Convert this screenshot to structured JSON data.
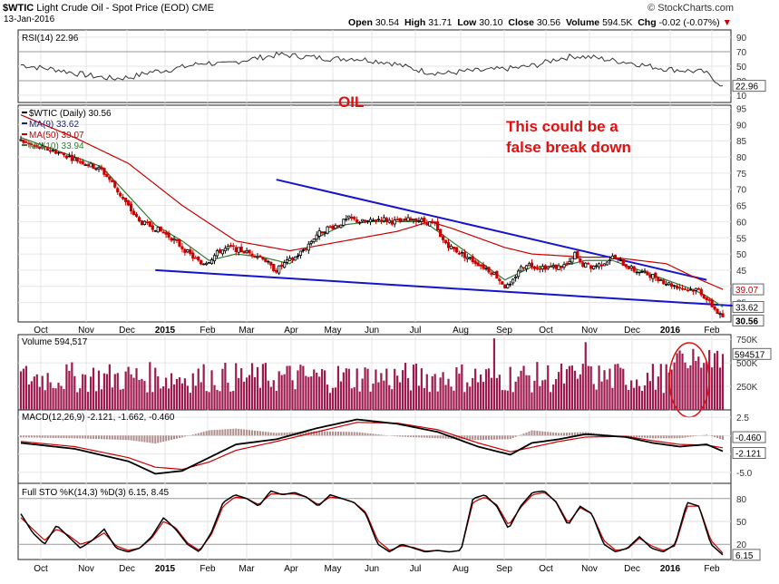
{
  "header": {
    "symbol": "$WTIC",
    "name": "Light Crude Oil - Spot Price (EOD)",
    "exchange": "CME",
    "watermark": "© StockCharts.com",
    "date": "13-Jan-2016",
    "open_label": "Open",
    "open": "30.54",
    "high_label": "High",
    "high": "31.71",
    "low_label": "Low",
    "low": "30.10",
    "close_label": "Close",
    "close": "30.56",
    "volume_label": "Volume",
    "volume": "594.5K",
    "chg_label": "Chg",
    "chg": "-0.02 (-0.07%)"
  },
  "annotations": {
    "oil": "OIL",
    "false_break_line1": "This could be a",
    "false_break_line2": "false break down"
  },
  "colors": {
    "up_bar": "#000000",
    "down_bar": "#cc0000",
    "volume": "#9e1a4e",
    "ma9": "#1a237e",
    "ma50": "#cc0000",
    "ma10": "#2e7d32",
    "trendline": "#1414cc",
    "annotation": "#e01010"
  },
  "chart_data": [
    {
      "type": "line",
      "panel": "RSI",
      "legend": "RSI(14) 22.96",
      "y_ticks": [
        10,
        30,
        50,
        70,
        90
      ],
      "ylim": [
        0,
        100
      ],
      "last_label": "22.96",
      "values": [
        52,
        48,
        45,
        40,
        36,
        33,
        35,
        42,
        45,
        50,
        55,
        52,
        58,
        62,
        66,
        64,
        62,
        60,
        61,
        58,
        55,
        48,
        42,
        40,
        43,
        44,
        46,
        48,
        52,
        60,
        64,
        62,
        58,
        55,
        50,
        46,
        44,
        42,
        22.96
      ]
    },
    {
      "type": "candlestick",
      "panel": "Price",
      "legend": [
        "$WTIC (Daily) 30.56",
        "MA(9) 33.62",
        "MA(50) 39.07",
        "MA(10) 33.94"
      ],
      "y_ticks": [
        35,
        40,
        45,
        50,
        55,
        60,
        65,
        70,
        75,
        80,
        85,
        90,
        95
      ],
      "ylim": [
        29,
        96
      ],
      "x_ticks": [
        "Oct",
        "Nov",
        "Dec",
        "2015",
        "Feb",
        "Mar",
        "Apr",
        "May",
        "Jun",
        "Jul",
        "Aug",
        "Sep",
        "Oct",
        "Nov",
        "Dec",
        "2016",
        "Feb"
      ],
      "price_labels": [
        "39.07",
        "33.62",
        "30.56"
      ],
      "close_path": [
        [
          0,
          85
        ],
        [
          6,
          83
        ],
        [
          12,
          82
        ],
        [
          18,
          80
        ],
        [
          24,
          78
        ],
        [
          30,
          76
        ],
        [
          34,
          72
        ],
        [
          38,
          67
        ],
        [
          44,
          60
        ],
        [
          50,
          58
        ],
        [
          56,
          55
        ],
        [
          60,
          52
        ],
        [
          64,
          49
        ],
        [
          67,
          47
        ],
        [
          70,
          48
        ],
        [
          74,
          51
        ],
        [
          78,
          52
        ],
        [
          82,
          51
        ],
        [
          86,
          50
        ],
        [
          90,
          49
        ],
        [
          93,
          46
        ],
        [
          95,
          45
        ],
        [
          98,
          47
        ],
        [
          102,
          49
        ],
        [
          106,
          52
        ],
        [
          110,
          56
        ],
        [
          114,
          58
        ],
        [
          118,
          59
        ],
        [
          122,
          61
        ],
        [
          126,
          60
        ],
        [
          130,
          60
        ],
        [
          134,
          61
        ],
        [
          138,
          60
        ],
        [
          142,
          60
        ],
        [
          146,
          61
        ],
        [
          150,
          60
        ],
        [
          154,
          59
        ],
        [
          156,
          55
        ],
        [
          160,
          52
        ],
        [
          164,
          50
        ],
        [
          168,
          48
        ],
        [
          172,
          46
        ],
        [
          176,
          44
        ],
        [
          180,
          40
        ],
        [
          182,
          40
        ],
        [
          185,
          45
        ],
        [
          188,
          47
        ],
        [
          192,
          46
        ],
        [
          196,
          46
        ],
        [
          200,
          46
        ],
        [
          204,
          47
        ],
        [
          206,
          50
        ],
        [
          208,
          47
        ],
        [
          212,
          46
        ],
        [
          216,
          47
        ],
        [
          220,
          49
        ],
        [
          224,
          47
        ],
        [
          228,
          45
        ],
        [
          232,
          44
        ],
        [
          236,
          43
        ],
        [
          240,
          41
        ],
        [
          244,
          40
        ],
        [
          248,
          39
        ],
        [
          252,
          39
        ],
        [
          254,
          37
        ],
        [
          256,
          35
        ],
        [
          258,
          33
        ],
        [
          260,
          31
        ],
        [
          261,
          30.56
        ]
      ],
      "ma50_path": [
        [
          0,
          93
        ],
        [
          20,
          86
        ],
        [
          40,
          78
        ],
        [
          60,
          65
        ],
        [
          80,
          54
        ],
        [
          100,
          51
        ],
        [
          120,
          54
        ],
        [
          140,
          57
        ],
        [
          152,
          60
        ],
        [
          160,
          58
        ],
        [
          180,
          52
        ],
        [
          190,
          50
        ],
        [
          210,
          49
        ],
        [
          220,
          49
        ],
        [
          240,
          47
        ],
        [
          250,
          43
        ],
        [
          261,
          39.07
        ]
      ],
      "ma9_path": [
        [
          0,
          86
        ],
        [
          10,
          83
        ],
        [
          20,
          80
        ],
        [
          30,
          77
        ],
        [
          40,
          68
        ],
        [
          50,
          59
        ],
        [
          60,
          54
        ],
        [
          70,
          48
        ],
        [
          80,
          50
        ],
        [
          90,
          49
        ],
        [
          100,
          47
        ],
        [
          110,
          55
        ],
        [
          120,
          59
        ],
        [
          130,
          60
        ],
        [
          140,
          60
        ],
        [
          150,
          60
        ],
        [
          160,
          54
        ],
        [
          170,
          48
        ],
        [
          180,
          42
        ],
        [
          190,
          46
        ],
        [
          200,
          46
        ],
        [
          210,
          48
        ],
        [
          220,
          48
        ],
        [
          230,
          45
        ],
        [
          240,
          42
        ],
        [
          250,
          39
        ],
        [
          255,
          37
        ],
        [
          261,
          33.62
        ]
      ],
      "upper_trendline": [
        [
          95,
          73
        ],
        [
          255,
          42
        ]
      ],
      "lower_trendline": [
        [
          50,
          45
        ],
        [
          265,
          34
        ]
      ]
    },
    {
      "type": "bar",
      "panel": "Volume",
      "legend": "Volume 594,517",
      "y_ticks": [
        "250K",
        "500K",
        "750K"
      ],
      "ylim": [
        0,
        800000
      ],
      "last_label": "594517",
      "count": 262
    },
    {
      "type": "line",
      "panel": "MACD",
      "legend": "MACD(12,26,9) -2.121, -1.662, -0.460",
      "y_ticks": [
        -5.0,
        -2.5,
        0.0,
        2.5
      ],
      "ylim": [
        -6.5,
        3.5
      ],
      "last_labels": [
        "-0.460",
        "-2.121"
      ],
      "macd": [
        [
          0,
          -1
        ],
        [
          20,
          -1.8
        ],
        [
          40,
          -3.5
        ],
        [
          50,
          -5.2
        ],
        [
          60,
          -4.8
        ],
        [
          70,
          -3
        ],
        [
          80,
          -1.2
        ],
        [
          95,
          -0.5
        ],
        [
          110,
          1
        ],
        [
          125,
          2.2
        ],
        [
          140,
          1.6
        ],
        [
          155,
          0.5
        ],
        [
          170,
          -1.5
        ],
        [
          182,
          -2.6
        ],
        [
          190,
          -1
        ],
        [
          200,
          -0.5
        ],
        [
          210,
          0.2
        ],
        [
          225,
          -0.2
        ],
        [
          235,
          -1
        ],
        [
          245,
          -1.5
        ],
        [
          255,
          -1.2
        ],
        [
          261,
          -2.121
        ]
      ],
      "signal": [
        [
          0,
          -0.8
        ],
        [
          20,
          -1.5
        ],
        [
          40,
          -3
        ],
        [
          50,
          -4.3
        ],
        [
          60,
          -4.6
        ],
        [
          70,
          -3.6
        ],
        [
          80,
          -2
        ],
        [
          95,
          -0.8
        ],
        [
          110,
          0.5
        ],
        [
          125,
          1.8
        ],
        [
          140,
          1.7
        ],
        [
          155,
          0.8
        ],
        [
          170,
          -1
        ],
        [
          182,
          -2.2
        ],
        [
          190,
          -1.6
        ],
        [
          200,
          -0.8
        ],
        [
          210,
          -0.2
        ],
        [
          225,
          -0.1
        ],
        [
          235,
          -0.7
        ],
        [
          245,
          -1.2
        ],
        [
          255,
          -1.3
        ],
        [
          261,
          -1.662
        ]
      ]
    },
    {
      "type": "line",
      "panel": "Full STO",
      "legend": "Full STO %K(14,3) %D(3) 6.15, 8.45",
      "y_ticks": [
        20,
        50,
        80
      ],
      "ylim": [
        0,
        100
      ],
      "last_label": "6.15",
      "k": [
        60,
        35,
        20,
        45,
        30,
        15,
        25,
        40,
        15,
        10,
        15,
        30,
        55,
        40,
        20,
        10,
        35,
        75,
        85,
        80,
        70,
        90,
        85,
        88,
        82,
        70,
        85,
        80,
        75,
        60,
        20,
        10,
        20,
        15,
        10,
        12,
        10,
        12,
        80,
        85,
        70,
        40,
        70,
        88,
        90,
        75,
        45,
        70,
        60,
        20,
        10,
        15,
        30,
        15,
        10,
        20,
        75,
        70,
        20,
        6.15
      ],
      "d": [
        55,
        40,
        25,
        40,
        32,
        20,
        25,
        35,
        18,
        12,
        15,
        28,
        50,
        42,
        22,
        12,
        32,
        70,
        82,
        80,
        72,
        86,
        86,
        86,
        82,
        72,
        82,
        80,
        75,
        62,
        25,
        12,
        18,
        16,
        11,
        12,
        10,
        12,
        75,
        82,
        72,
        45,
        68,
        85,
        88,
        76,
        48,
        68,
        60,
        25,
        12,
        14,
        28,
        18,
        12,
        18,
        70,
        70,
        25,
        8.45
      ]
    }
  ]
}
